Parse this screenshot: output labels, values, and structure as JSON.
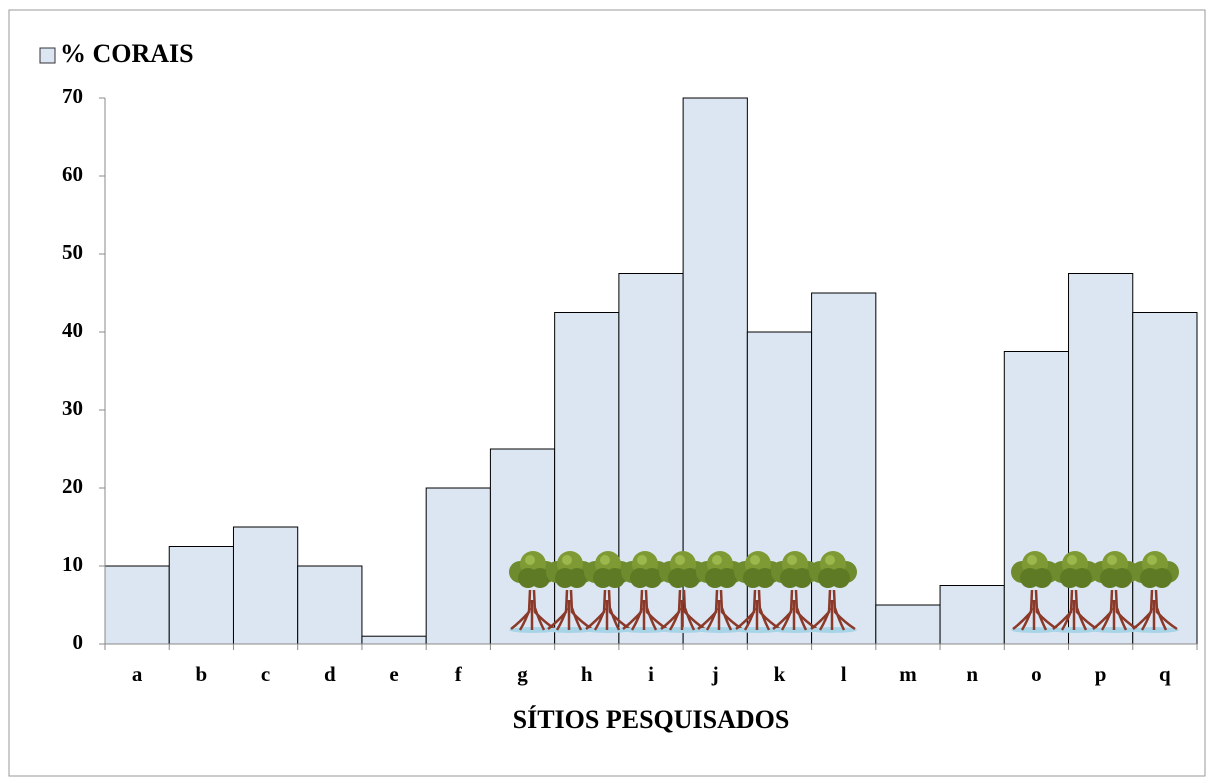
{
  "chart_data": {
    "type": "bar",
    "categories": [
      "a",
      "b",
      "c",
      "d",
      "e",
      "f",
      "g",
      "h",
      "i",
      "j",
      "k",
      "l",
      "m",
      "n",
      "o",
      "p",
      "q"
    ],
    "series": [
      {
        "name": "% CORAIS",
        "color": "#dce6f2",
        "values": [
          10,
          12.5,
          15,
          10,
          1,
          20,
          25,
          42.5,
          47.5,
          70,
          40,
          45,
          5,
          7.5,
          37.5,
          47.5,
          42.5
        ]
      }
    ],
    "x_label": "SÍTIOS PESQUISADOS",
    "ylim": [
      0,
      70
    ],
    "yticks": [
      0,
      10,
      20,
      30,
      40,
      50,
      60,
      70
    ],
    "grid": false,
    "legend": "top-left"
  }
}
